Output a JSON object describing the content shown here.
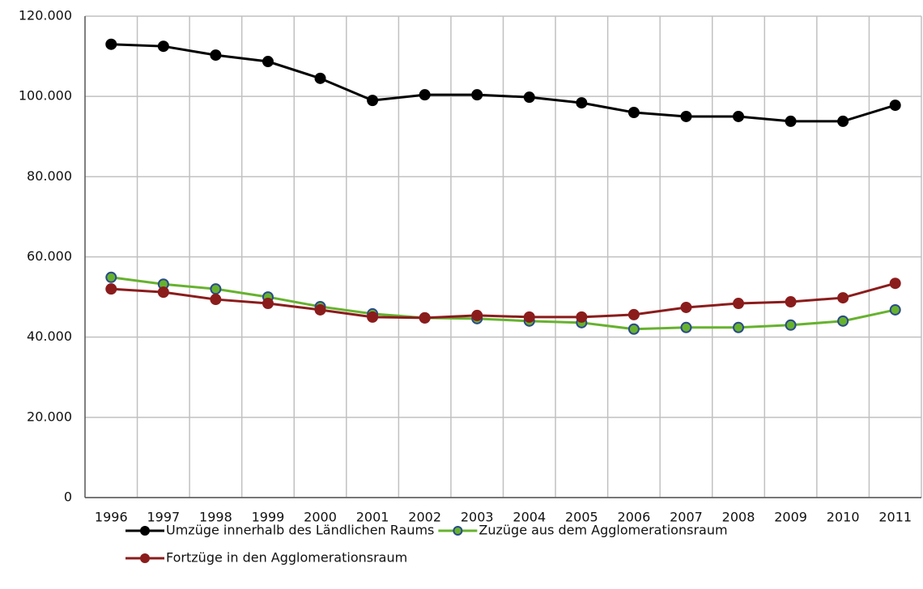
{
  "chart_data": {
    "type": "line",
    "categories": [
      "1996",
      "1997",
      "1998",
      "1999",
      "2000",
      "2001",
      "2002",
      "2003",
      "2004",
      "2005",
      "2006",
      "2007",
      "2008",
      "2009",
      "2010",
      "2011"
    ],
    "series": [
      {
        "name": "Umzüge innerhalb des Ländlichen Raums",
        "color": "#000000",
        "marker_edge": "#000000",
        "values": [
          113000,
          112500,
          110300,
          108700,
          104500,
          99000,
          100400,
          100400,
          99800,
          98400,
          96000,
          95000,
          95000,
          93800,
          93800,
          97800
        ]
      },
      {
        "name": "Zuzüge aus dem Agglomerationsraum",
        "color": "#66b22e",
        "marker_edge": "#2a4a8a",
        "values": [
          54900,
          53200,
          52000,
          50000,
          47600,
          45800,
          44800,
          44600,
          44000,
          43600,
          42000,
          42400,
          42400,
          43000,
          44000,
          46800
        ]
      },
      {
        "name": "Fortzüge in den Agglomerationsraum",
        "color": "#8b1c1c",
        "marker_edge": "#8b1c1c",
        "values": [
          52000,
          51200,
          49400,
          48400,
          46800,
          45000,
          44800,
          45400,
          45000,
          45000,
          45600,
          47400,
          48400,
          48800,
          49800,
          53400
        ]
      }
    ],
    "ylim": [
      0,
      120000
    ],
    "yticks": [
      0,
      {
        "value": 20000,
        "label": "20.000"
      },
      {
        "value": 40000,
        "label": "40.000"
      },
      {
        "value": 60000,
        "label": "60.000"
      },
      {
        "value": 80000,
        "label": "80.000"
      },
      {
        "value": 100000,
        "label": "100.000"
      },
      {
        "value": 120000,
        "label": "120.000"
      }
    ],
    "grid": true,
    "legend": "bottom"
  }
}
